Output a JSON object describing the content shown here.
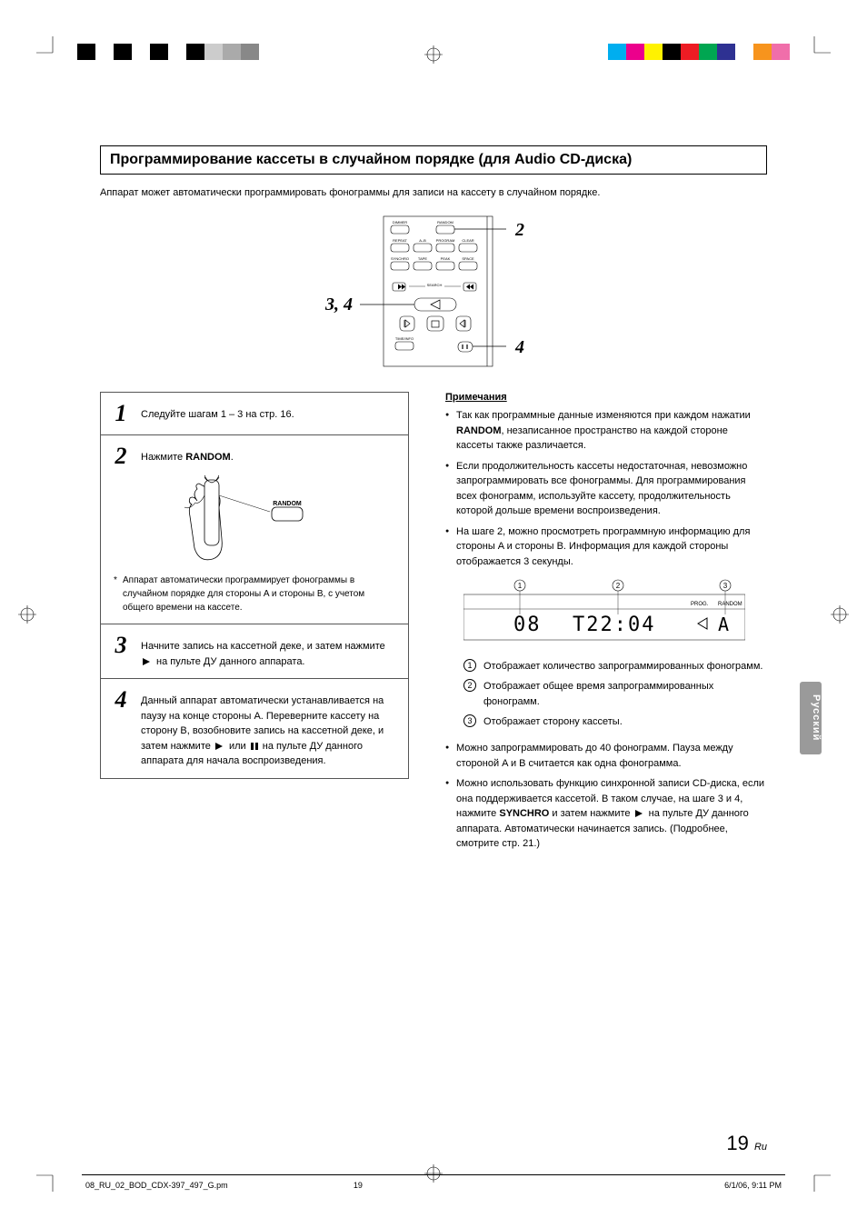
{
  "title": "Программирование кассеты в случайном порядке  (для Audio CD-диска)",
  "intro": "Аппарат может автоматически программировать фонограммы для записи на кассету в случайном порядке.",
  "remote_diagram": {
    "buttons": {
      "dimmer": "DIMMER",
      "random": "RANDOM",
      "repeat": "REPEAT",
      "a_b": "A–B",
      "program": "PROGRAM",
      "clear": "CLEAR",
      "synchro": "SYNCHRO",
      "tape": "TAPE",
      "peak": "PEAK",
      "space": "SPACE",
      "search": "SEARCH",
      "time_info": "TIME/INFO"
    },
    "callout_2": "2",
    "callout_34": "3, 4",
    "callout_4": "4"
  },
  "steps": {
    "s1": {
      "num": "1",
      "text": "Следуйте шагам 1 – 3 на стр. 16."
    },
    "s2": {
      "num": "2",
      "text_prefix": "Нажмите ",
      "text_bold": "RANDOM",
      "text_suffix": ".",
      "note": "Аппарат автоматически программирует фонограммы в случайном порядке для стороны A и стороны B, с учетом общего времени на кассете.",
      "btn_label": "RANDOM"
    },
    "s3": {
      "num": "3",
      "text_before": "Начните запись на кассетной деке, и затем нажмите ",
      "text_after": " на пульте ДУ данного аппарата."
    },
    "s4": {
      "num": "4",
      "text_1": "Данный аппарат автоматически устанавливается на паузу на конце стороны A. Переверните кассету на сторону B, возобновите запись на кассетной деке, и затем нажмите ",
      "text_2": " или ",
      "text_3": " на пульте ДУ данного аппарата для начала воспроизведения."
    }
  },
  "notes": {
    "title": "Примечания",
    "n1_a": "Так как программные данные изменяются при каждом нажатии ",
    "n1_bold": "RANDOM",
    "n1_b": ", незаписанное пространство на каждой стороне кассеты также различается.",
    "n2": "Если продолжительность кассеты недостаточная, невозможно запрограммировать все фонограммы. Для программирования всех фонограмм, используйте кассету, продолжительность которой дольше времени воспроизведения.",
    "n3": "На шаге 2, можно просмотреть программную информацию для стороны A и стороны B. Информация для каждой стороны отображается 3 секунды."
  },
  "display": {
    "label_prog": "PROG.",
    "label_random": "RANDOM",
    "tracks": "08",
    "time": "T22:04",
    "side": "A",
    "c1": "1",
    "c2": "2",
    "c3": "3"
  },
  "numbered": {
    "i1": {
      "num": "1",
      "text": "Отображает количество запрограммированных фонограмм."
    },
    "i2": {
      "num": "2",
      "text": "Отображает общее время запрограммированных фонограмм."
    },
    "i3": {
      "num": "3",
      "text": "Отображает сторону кассеты."
    }
  },
  "notes2": {
    "n1": "Можно запрограммировать до 40 фонограмм. Пауза между стороной A и B считается как одна фонограмма.",
    "n2_a": "Можно использовать функцию синхронной записи CD-диска, если она поддерживается кассетой. В таком случае, на шаге 3 и 4, нажмите ",
    "n2_bold": "SYNCHRO",
    "n2_b": " и затем нажмите ",
    "n2_c": " на пульте ДУ данного аппарата. Автоматически начинается запись. (Подробнее, смотрите стр. 21.)"
  },
  "lang_tab": "Русский",
  "page_number": "19",
  "page_suffix": "Ru",
  "footer": {
    "file": "08_RU_02_BOD_CDX-397_497_G.pm",
    "page": "19",
    "date": "6/1/06, 9:11 PM"
  },
  "colors": {
    "colorbar_left": [
      "#000000",
      "#ffffff",
      "#000000",
      "#ffffff",
      "#000000",
      "#ffffff",
      "#000000",
      "#cccccc",
      "#aaaaaa",
      "#888888"
    ],
    "colorbar_right": [
      "#00aeef",
      "#ec008c",
      "#fff200",
      "#000000",
      "#ed1c24",
      "#00a651",
      "#2e3192",
      "#ffffff",
      "#f7941d",
      "#f06eaa"
    ]
  }
}
